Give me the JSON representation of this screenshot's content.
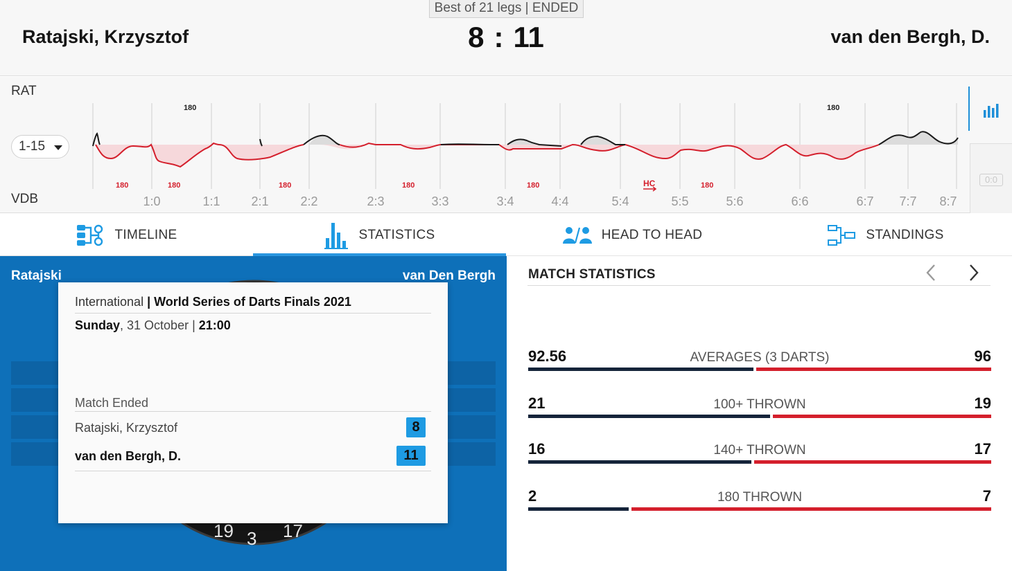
{
  "header": {
    "format_badge": "Best of 21 legs | ENDED",
    "home_name": "Ratajski, Krzysztof",
    "away_name": "van den Bergh, D.",
    "home_score": "8",
    "score_separator": ":",
    "away_score": "11"
  },
  "legs_chart": {
    "home_abbr": "RAT",
    "away_abbr": "VDB",
    "range_select_value": "1-15",
    "side_score": "0:0",
    "score_ticks": [
      "1:0",
      "1:1",
      "2:1",
      "2:2",
      "2:3",
      "3:3",
      "3:4",
      "4:4",
      "5:4",
      "5:5",
      "5:6",
      "6:6",
      "6:7",
      "7:7",
      "8:7"
    ],
    "home_events": [
      "180",
      "180"
    ],
    "away_events": [
      "180",
      "180",
      "180",
      "180",
      "180",
      "HC",
      "180"
    ],
    "colors": {
      "home_line": "#1a1a1a",
      "away_line": "#d41f2c",
      "away_fill": "#f6d8db",
      "home_fill": "#dcdcdc"
    }
  },
  "tabs": [
    {
      "label": "TIMELINE",
      "icon": "timeline-icon"
    },
    {
      "label": "STATISTICS",
      "icon": "statistics-icon",
      "active": true
    },
    {
      "label": "HEAD TO HEAD",
      "icon": "head-to-head-icon"
    },
    {
      "label": "STANDINGS",
      "icon": "standings-icon"
    }
  ],
  "visual": {
    "home_label": "Ratajski",
    "away_label": "van Den Bergh",
    "board_numbers": [
      "19",
      "3",
      "17"
    ]
  },
  "info_card": {
    "competition_prefix": "International",
    "competition_sep": " | ",
    "competition_name": "World Series of Darts Finals 2021",
    "day": "Sunday",
    "date": ", 31 October | ",
    "time": "21:00",
    "status": "Match Ended",
    "home_player": "Ratajski, Krzysztof",
    "home_score": "8",
    "away_player": "van den Bergh, D.",
    "away_score": "11"
  },
  "match_statistics": {
    "title": "MATCH STATISTICS",
    "rows": [
      {
        "label": "AVERAGES (3 DARTS)",
        "home": "92.56",
        "away": "96",
        "home_share": 0.49
      },
      {
        "label": "100+ THROWN",
        "home": "21",
        "away": "19",
        "home_share": 0.525
      },
      {
        "label": "140+ THROWN",
        "home": "16",
        "away": "17",
        "home_share": 0.485
      },
      {
        "label": "180 THROWN",
        "home": "2",
        "away": "7",
        "home_share": 0.22
      }
    ],
    "colors": {
      "home": "#15243a",
      "away": "#d41f2c"
    }
  }
}
